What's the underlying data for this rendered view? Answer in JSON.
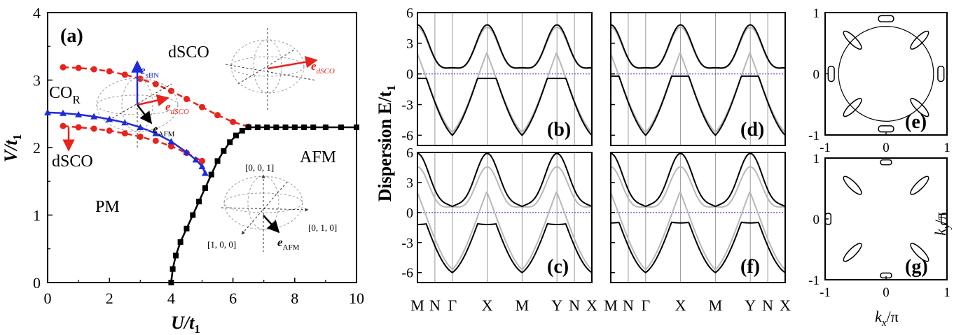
{
  "colors": {
    "red": "#e8231c",
    "blue": "#1f2bd8",
    "black": "#000000",
    "gray": "#b8b8b8",
    "dotted_blue": "#3b48e0"
  },
  "chart_data": [
    {
      "id": "a",
      "type": "line",
      "panel_label": "(a)",
      "xlabel": "U/t",
      "xlabel_sub": "1",
      "ylabel": "V/t",
      "ylabel_sub": "1",
      "xlim": [
        0,
        10
      ],
      "ylim": [
        0,
        4
      ],
      "x_ticks": [
        "0",
        "2",
        "4",
        "6",
        "8",
        "10"
      ],
      "y_ticks": [
        "0",
        "1",
        "2",
        "3",
        "4"
      ],
      "regions": {
        "pm": "PM",
        "afm": "AFM",
        "dsco_top": "dSCO",
        "dsco_left": "dSCO",
        "cor": "CO",
        "cor_sub": "R"
      },
      "inset_labels": {
        "e_sbn": "e",
        "e_sbn_sub": "sBN",
        "e_dsco": "e",
        "e_dsco_sub": "dSCO",
        "e_afm": "e",
        "e_afm_sub": "AFM",
        "axis_001": "[0, 0, 1]",
        "axis_010": "[0, 1, 0]",
        "axis_100": "[1, 0, 0]"
      },
      "series": [
        {
          "name": "",
          "style": "red-dashed-circle",
          "x": [
            0.5,
            1.0,
            1.5,
            2.0,
            2.5,
            3.0,
            3.5,
            4.0,
            4.5,
            5.0,
            5.5,
            6.0,
            6.5
          ],
          "y": [
            3.19,
            3.18,
            3.16,
            3.13,
            3.08,
            3.02,
            2.94,
            2.84,
            2.72,
            2.6,
            2.48,
            2.38,
            2.31
          ]
        },
        {
          "name": "",
          "style": "red-dashed-circle",
          "x": [
            0.5,
            1.0,
            1.5,
            2.0,
            2.5,
            3.0,
            3.5,
            4.0,
            4.5,
            5.0
          ],
          "y": [
            2.32,
            2.3,
            2.28,
            2.25,
            2.21,
            2.16,
            2.1,
            2.02,
            1.92,
            1.8
          ]
        },
        {
          "name": "",
          "style": "blue-solid-triangle",
          "x": [
            0.0,
            0.5,
            1.0,
            1.5,
            2.0,
            2.5,
            3.0,
            3.5,
            4.0,
            4.5,
            4.8,
            5.0,
            5.1
          ],
          "y": [
            2.52,
            2.51,
            2.49,
            2.46,
            2.42,
            2.37,
            2.3,
            2.21,
            2.09,
            1.93,
            1.82,
            1.72,
            1.62
          ]
        },
        {
          "name": "",
          "style": "black-solid-square",
          "x": [
            4.0,
            4.05,
            4.15,
            4.3,
            4.5,
            4.7,
            4.9,
            5.1,
            5.3,
            5.5,
            5.7,
            5.9,
            6.1,
            6.3,
            6.5
          ],
          "y": [
            0.0,
            0.2,
            0.4,
            0.6,
            0.8,
            1.0,
            1.2,
            1.4,
            1.6,
            1.8,
            1.95,
            2.08,
            2.18,
            2.25,
            2.3
          ]
        },
        {
          "name": "",
          "style": "black-solid-square",
          "x": [
            6.5,
            6.8,
            7.1,
            7.4,
            7.7,
            8.0,
            8.3,
            8.6,
            9.0,
            9.5,
            10.0
          ],
          "y": [
            2.3,
            2.3,
            2.3,
            2.3,
            2.3,
            2.3,
            2.3,
            2.3,
            2.3,
            2.3,
            2.3
          ]
        }
      ]
    },
    {
      "id": "bands",
      "type": "line",
      "ylabel": "Dispersion E/t",
      "ylabel_sub": "1",
      "k_labels": [
        "M",
        "N",
        "Γ",
        "X",
        "M",
        "Y",
        "N",
        "X"
      ],
      "k_positions": [
        0,
        1,
        2,
        4,
        6,
        8,
        9,
        10
      ],
      "panels": [
        {
          "id": "b",
          "panel_label": "(b)",
          "ylim": [
            -7,
            6
          ],
          "y_ticks": [
            "6",
            "3",
            "0",
            "-3",
            "-6"
          ],
          "gap": 1.1
        },
        {
          "id": "d",
          "panel_label": "(d)",
          "ylim": [
            -7,
            6
          ],
          "y_ticks": [
            "6",
            "3",
            "0",
            "-3",
            "-6"
          ],
          "gap": 0.55
        },
        {
          "id": "c",
          "panel_label": "(c)",
          "ylim": [
            -7,
            6
          ],
          "y_ticks": [
            "6",
            "3",
            "0",
            "-3",
            "-6"
          ],
          "gap": 1.0
        },
        {
          "id": "f",
          "panel_label": "(f)",
          "ylim": [
            -7,
            6
          ],
          "y_ticks": [
            "6",
            "3",
            "0",
            "-3",
            "-6"
          ],
          "gap": 0.6
        }
      ]
    },
    {
      "id": "fermi",
      "type": "line",
      "xlabel": "k",
      "xlabel_sub": "x",
      "xlabel_tail": "/π",
      "ylabel": "k",
      "ylabel_sub": "y",
      "ylabel_tail": "/π",
      "xlim": [
        -1,
        1
      ],
      "ylim": [
        -1,
        1
      ],
      "x_ticks": [
        "-1",
        "0",
        "1"
      ],
      "y_ticks": [
        "1",
        "0",
        "-1"
      ],
      "panels": [
        {
          "id": "e",
          "panel_label": "(e)"
        },
        {
          "id": "g",
          "panel_label": "(g)"
        }
      ]
    }
  ]
}
